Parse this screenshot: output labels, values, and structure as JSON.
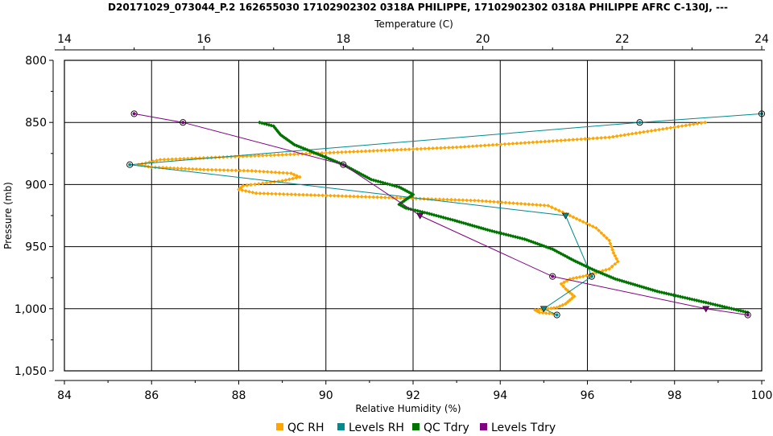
{
  "chart_data": {
    "type": "line",
    "title": "D20171029_073044_P.2 162655030 17102902302 0318A PHILIPPE, 17102902302 0318A PHILIPPE AFRC C-130J, ---",
    "top_axis": {
      "label": "Temperature (C)",
      "range": [
        14,
        24
      ],
      "ticks": [
        "14",
        "16",
        "18",
        "20",
        "22",
        "24"
      ]
    },
    "bottom_axis": {
      "label": "Relative Humidity (%)",
      "range": [
        84,
        100
      ],
      "ticks": [
        "84",
        "86",
        "88",
        "90",
        "92",
        "94",
        "96",
        "98",
        "100"
      ]
    },
    "left_axis": {
      "label": "Pressure (mb)",
      "range": [
        800,
        1050
      ],
      "inverted": true,
      "ticks": [
        "800",
        "850",
        "900",
        "950",
        "1,000",
        "1,050"
      ]
    },
    "grid": true,
    "legend": {
      "position": "bottom",
      "entries": [
        "QC RH",
        "Levels RH",
        "QC Tdry",
        "Levels Tdry"
      ]
    },
    "colors": {
      "qc_rh": "#FFA500",
      "levels_rh": "#008B8B",
      "qc_tdry": "#007400",
      "levels_tdry": "#800080"
    },
    "series": [
      {
        "name": "QC RH",
        "axis": "rh",
        "points": [
          [
            98.7,
            850
          ],
          [
            96.5,
            862
          ],
          [
            93.0,
            870
          ],
          [
            89.0,
            876
          ],
          [
            86.2,
            880
          ],
          [
            85.7,
            884
          ],
          [
            86.0,
            886
          ],
          [
            87.2,
            888
          ],
          [
            88.3,
            889
          ],
          [
            89.2,
            891
          ],
          [
            89.4,
            894
          ],
          [
            89.0,
            897
          ],
          [
            88.1,
            901
          ],
          [
            88.0,
            904
          ],
          [
            88.4,
            907
          ],
          [
            91.0,
            910
          ],
          [
            93.5,
            913
          ],
          [
            95.1,
            917
          ],
          [
            95.6,
            925
          ],
          [
            96.2,
            935
          ],
          [
            96.5,
            945
          ],
          [
            96.6,
            955
          ],
          [
            96.7,
            962
          ],
          [
            96.5,
            968
          ],
          [
            96.2,
            971
          ],
          [
            95.9,
            974
          ],
          [
            95.6,
            976
          ],
          [
            95.4,
            980
          ],
          [
            95.5,
            984
          ],
          [
            95.6,
            987
          ],
          [
            95.7,
            990
          ],
          [
            95.6,
            993
          ],
          [
            95.5,
            996
          ],
          [
            95.3,
            999
          ],
          [
            95.1,
            1000
          ],
          [
            94.8,
            1001
          ],
          [
            94.9,
            1003
          ],
          [
            95.2,
            1004
          ]
        ]
      },
      {
        "name": "Levels RH",
        "axis": "rh",
        "points": [
          [
            100.0,
            843
          ],
          [
            97.2,
            850
          ],
          [
            85.5,
            884
          ],
          [
            95.5,
            925
          ],
          [
            96.1,
            974
          ],
          [
            95.0,
            1000
          ],
          [
            95.3,
            1005
          ]
        ]
      },
      {
        "name": "QC Tdry",
        "axis": "temp",
        "points": [
          [
            16.8,
            850
          ],
          [
            17.0,
            853
          ],
          [
            17.1,
            860
          ],
          [
            17.3,
            868
          ],
          [
            17.7,
            877
          ],
          [
            18.0,
            884
          ],
          [
            18.2,
            890
          ],
          [
            18.4,
            896
          ],
          [
            18.8,
            902
          ],
          [
            19.0,
            908
          ],
          [
            18.9,
            912
          ],
          [
            18.8,
            916
          ],
          [
            18.9,
            919
          ],
          [
            19.2,
            923
          ],
          [
            19.6,
            929
          ],
          [
            20.1,
            937
          ],
          [
            20.6,
            944
          ],
          [
            21.0,
            952
          ],
          [
            21.3,
            961
          ],
          [
            21.6,
            969
          ],
          [
            21.9,
            976
          ],
          [
            22.5,
            986
          ],
          [
            23.2,
            995
          ],
          [
            23.8,
            1003
          ]
        ]
      },
      {
        "name": "Levels Tdry",
        "axis": "temp",
        "points": [
          [
            15.0,
            843
          ],
          [
            15.7,
            850
          ],
          [
            18.0,
            884
          ],
          [
            19.1,
            925
          ],
          [
            21.0,
            974
          ],
          [
            23.2,
            1000
          ],
          [
            23.8,
            1005
          ]
        ]
      }
    ]
  }
}
